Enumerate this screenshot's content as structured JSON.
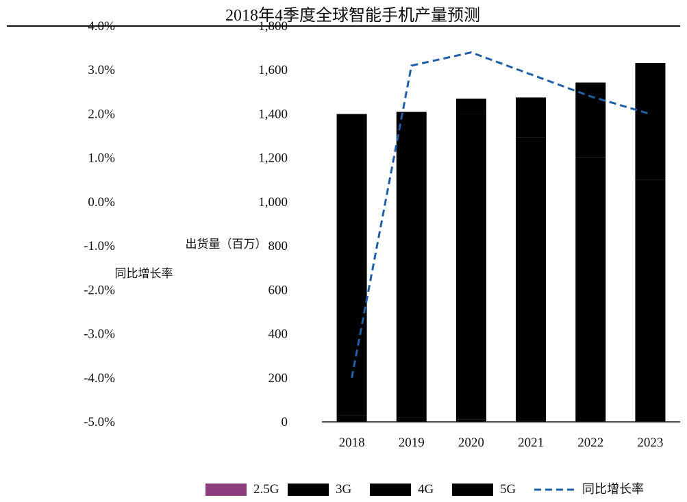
{
  "chart_data": {
    "type": "bar",
    "title": "2018年4季度全球智能手机产量预测",
    "categories": [
      "2018",
      "2019",
      "2020",
      "2021",
      "2022",
      "2023"
    ],
    "ylabel": "出货量（百万）",
    "y2label": "同比增长率",
    "ylim": [
      0,
      1800
    ],
    "y2lim": [
      -5.0,
      4.0
    ],
    "y_ticks": [
      "0",
      "200",
      "400",
      "600",
      "800",
      "1,000",
      "1,200",
      "1,400",
      "1,600",
      "1,800"
    ],
    "y2_ticks": [
      "-5.0%",
      "-4.0%",
      "-3.0%",
      "-2.0%",
      "-1.0%",
      "0.0%",
      "1.0%",
      "2.0%",
      "3.0%",
      "4.0%"
    ],
    "series": [
      {
        "name": "2.5G",
        "kind": "bar",
        "color": "#8e3d7e",
        "values": [
          0,
          0,
          0,
          0,
          0,
          0
        ]
      },
      {
        "name": "3G",
        "kind": "bar",
        "color": "#000000",
        "values": [
          30,
          20,
          10,
          5,
          3,
          2
        ]
      },
      {
        "name": "4G",
        "kind": "bar",
        "color": "#000000",
        "values": [
          1370,
          1390,
          1390,
          1290,
          1200,
          1100
        ]
      },
      {
        "name": "5G",
        "kind": "bar",
        "color": "#000000",
        "values": [
          0,
          0,
          70,
          180,
          340,
          530
        ]
      },
      {
        "name": "同比增长率",
        "kind": "line",
        "color": "#1f5fa8",
        "values": [
          -4.0,
          3.1,
          3.4,
          2.9,
          2.4,
          2.0
        ]
      }
    ],
    "legend": "bottom",
    "grid": false
  }
}
